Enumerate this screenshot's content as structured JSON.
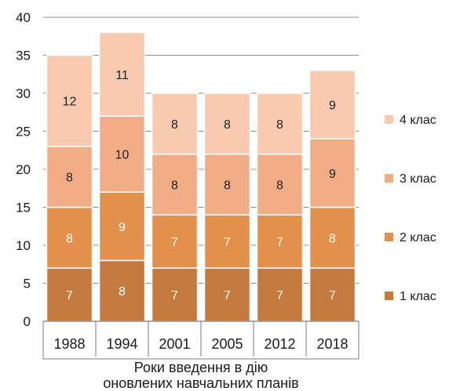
{
  "chart_data": {
    "type": "bar",
    "stacked": true,
    "categories": [
      "1988",
      "1994",
      "2001",
      "2005",
      "2012",
      "2018"
    ],
    "series": [
      {
        "name": "1 клас",
        "values": [
          7,
          8,
          7,
          7,
          7,
          7
        ],
        "color": "#c47a3e",
        "label_color": "#ffffff"
      },
      {
        "name": "2 клас",
        "values": [
          8,
          9,
          7,
          7,
          7,
          8
        ],
        "color": "#e3904c",
        "label_color": "#ffffff"
      },
      {
        "name": "3 клас",
        "values": [
          8,
          10,
          8,
          8,
          8,
          9
        ],
        "color": "#f1ad85",
        "label_color": "#222222"
      },
      {
        "name": "4 клас",
        "values": [
          12,
          11,
          8,
          8,
          8,
          9
        ],
        "color": "#f8cbb0",
        "label_color": "#222222"
      }
    ],
    "xlabel": [
      "Роки введення в дію",
      "оновлених навчальних планів"
    ],
    "ylabel": "",
    "ylim": [
      0,
      40
    ],
    "yticks": [
      0,
      5,
      10,
      15,
      20,
      25,
      30,
      35,
      40
    ],
    "grid": true,
    "legend_position": "right",
    "legend_order": [
      "4 клас",
      "3 клас",
      "2 клас",
      "1 клас"
    ]
  }
}
